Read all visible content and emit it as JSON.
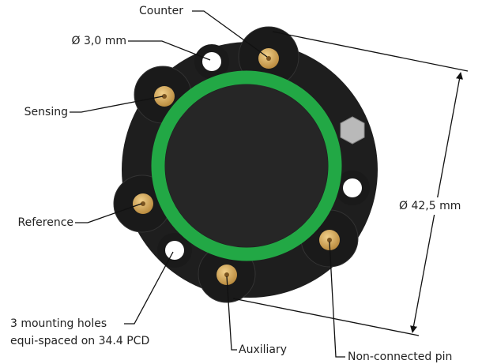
{
  "callouts": {
    "counter": "Counter",
    "hole_diameter": "Ø 3,0 mm",
    "sensing": "Sensing",
    "reference": "Reference",
    "mounting_holes": [
      "3 mounting holes",
      "equi-spaced on 34.4 PCD"
    ],
    "auxiliary": "Auxiliary",
    "non_connected_pin": "Non-connected pin"
  },
  "dimension": "Ø 42,5 mm"
}
